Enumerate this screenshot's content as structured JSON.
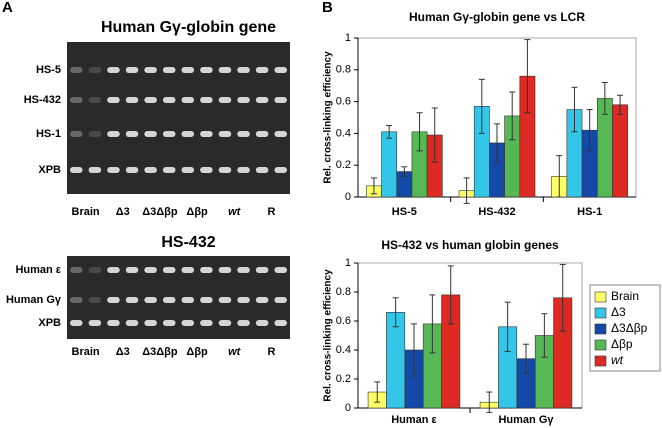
{
  "panel_labels": [
    "A",
    "B"
  ],
  "gels": [
    {
      "title": "Human Gγ-globin gene",
      "rows": [
        "HS-5",
        "HS-432",
        "HS-1",
        "XPB"
      ],
      "lanes": [
        "Brain",
        "Δ3",
        "Δ3Δβp",
        "Δβp",
        "wt",
        "R"
      ]
    },
    {
      "title": "HS-432",
      "rows": [
        "Human ε",
        "Human Gγ",
        "XPB"
      ],
      "lanes": [
        "Brain",
        "Δ3",
        "Δ3Δβp",
        "Δβp",
        "wt",
        "R"
      ]
    }
  ],
  "chart_data": [
    {
      "type": "bar",
      "title": "Human Gγ-globin gene vs LCR",
      "y_label": "Rel. cross-linking efficiency",
      "categories": [
        "HS-5",
        "HS-432",
        "HS-1"
      ],
      "ylim": [
        0,
        1
      ],
      "yticks": [
        0,
        0.2,
        0.4,
        0.6,
        0.8,
        1
      ],
      "series": [
        {
          "name": "Brain",
          "color": "#ffff66",
          "values": [
            0.07,
            0.04,
            0.13
          ],
          "errors": [
            0.05,
            0.08,
            0.13
          ]
        },
        {
          "name": "Δ3",
          "color": "#33c6e8",
          "values": [
            0.41,
            0.57,
            0.55
          ],
          "errors": [
            0.04,
            0.17,
            0.14
          ]
        },
        {
          "name": "Δ3Δβp",
          "color": "#1449a8",
          "values": [
            0.16,
            0.34,
            0.42
          ],
          "errors": [
            0.03,
            0.12,
            0.13
          ]
        },
        {
          "name": "Δβp",
          "color": "#55b855",
          "values": [
            0.41,
            0.51,
            0.62
          ],
          "errors": [
            0.12,
            0.15,
            0.1
          ]
        },
        {
          "name": "wt",
          "color": "#dd2a22",
          "values": [
            0.39,
            0.76,
            0.58
          ],
          "errors": [
            0.17,
            0.23,
            0.06
          ]
        }
      ]
    },
    {
      "type": "bar",
      "title": "HS-432 vs human globin genes",
      "y_label": "Rel. cross-linking efficiency",
      "categories": [
        "Human ε",
        "Human Gγ"
      ],
      "ylim": [
        0,
        1
      ],
      "yticks": [
        0,
        0.2,
        0.4,
        0.6,
        0.8,
        1
      ],
      "legend": "right",
      "series": [
        {
          "name": "Brain",
          "color": "#ffff66",
          "values": [
            0.11,
            0.04
          ],
          "errors": [
            0.07,
            0.07
          ]
        },
        {
          "name": "Δ3",
          "color": "#33c6e8",
          "values": [
            0.66,
            0.56
          ],
          "errors": [
            0.1,
            0.17
          ]
        },
        {
          "name": "Δ3Δβp",
          "color": "#1449a8",
          "values": [
            0.4,
            0.34
          ],
          "errors": [
            0.18,
            0.1
          ]
        },
        {
          "name": "Δβp",
          "color": "#55b855",
          "values": [
            0.58,
            0.5
          ],
          "errors": [
            0.2,
            0.15
          ]
        },
        {
          "name": "wt",
          "color": "#dd2a22",
          "values": [
            0.78,
            0.76
          ],
          "errors": [
            0.2,
            0.23
          ]
        }
      ]
    }
  ]
}
